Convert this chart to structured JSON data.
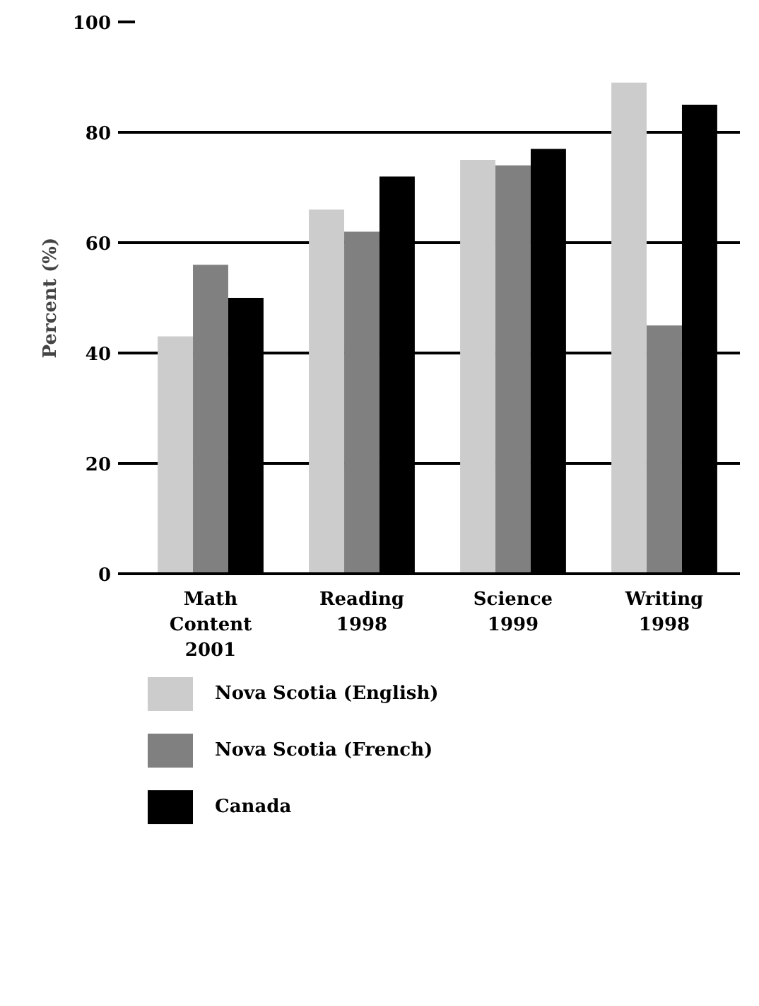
{
  "chart_data": {
    "type": "bar",
    "ylabel": "Percent (%)",
    "categories": [
      "Math\nContent\n2001",
      "Reading\n1998",
      "Science\n1999",
      "Writing\n1998"
    ],
    "series": [
      {
        "name": "Nova Scotia (English)",
        "color": "#cccccc",
        "values": [
          43,
          66,
          75,
          89
        ]
      },
      {
        "name": "Nova Scotia (French)",
        "color": "#808080",
        "values": [
          56,
          62,
          74,
          45
        ]
      },
      {
        "name": "Canada",
        "color": "#000000",
        "values": [
          50,
          72,
          77,
          85
        ]
      }
    ],
    "ylim": [
      0,
      100
    ],
    "yticks": [
      0,
      20,
      40,
      60,
      80,
      100
    ],
    "grid": "y",
    "legend": "bottom"
  }
}
